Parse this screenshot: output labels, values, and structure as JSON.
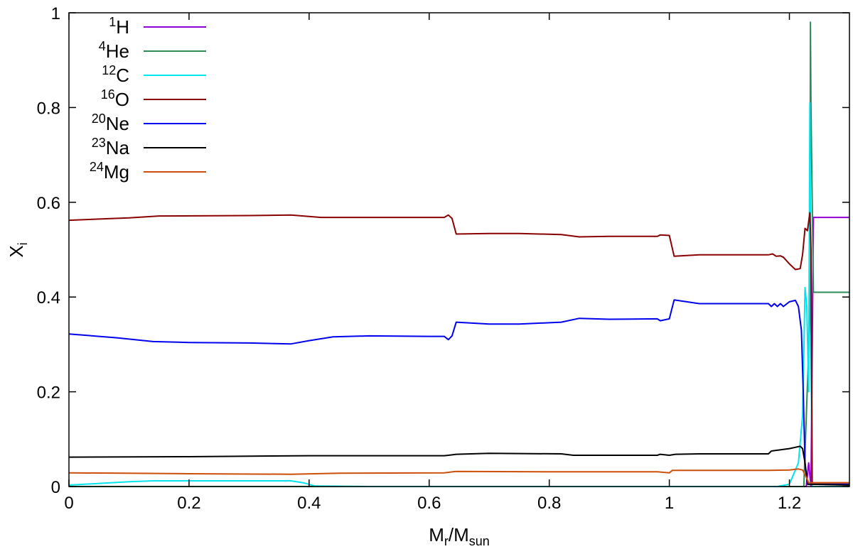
{
  "chart_data": {
    "type": "line",
    "title": "",
    "xlabel": {
      "main": "M",
      "sub1": "r",
      "mid": "/M",
      "sub2": "sun"
    },
    "ylabel": {
      "main": "X",
      "sub": "i"
    },
    "xlim": [
      0,
      1.3
    ],
    "ylim": [
      0,
      1
    ],
    "x_ticks": [
      0,
      0.2,
      0.4,
      0.6,
      0.8,
      1,
      1.2
    ],
    "x_tick_labels": [
      "0",
      "0.2",
      "0.4",
      "0.6",
      "0.8",
      "1",
      "1.2"
    ],
    "y_ticks": [
      0,
      0.2,
      0.4,
      0.6,
      0.8,
      1
    ],
    "y_tick_labels": [
      "0",
      "0.2",
      "0.4",
      "0.6",
      "0.8",
      "1"
    ],
    "grid": false,
    "legend_position": "top-left",
    "series": [
      {
        "name": "1H",
        "mass": "1",
        "symbol": "H",
        "color": "#9400d3",
        "points": [
          [
            0,
            0
          ],
          [
            1.228,
            0
          ],
          [
            1.232,
            0.05
          ],
          [
            1.236,
            0.0
          ],
          [
            1.24,
            0.568
          ],
          [
            1.3,
            0.568
          ]
        ]
      },
      {
        "name": "4He",
        "mass": "4",
        "symbol": "He",
        "color": "#2e8b57",
        "points": [
          [
            0,
            0
          ],
          [
            1.224,
            0
          ],
          [
            1.234,
            0.36
          ],
          [
            1.235,
            0.98
          ],
          [
            1.236,
            0.8
          ],
          [
            1.24,
            0.41
          ],
          [
            1.3,
            0.41
          ]
        ]
      },
      {
        "name": "12C",
        "mass": "12",
        "symbol": "C",
        "color": "#00e5ee",
        "points": [
          [
            0,
            0.003
          ],
          [
            0.1,
            0.01
          ],
          [
            0.14,
            0.012
          ],
          [
            0.3,
            0.012
          ],
          [
            0.37,
            0.012
          ],
          [
            0.39,
            0.008
          ],
          [
            0.41,
            0.001
          ],
          [
            0.5,
            0
          ],
          [
            1.18,
            0
          ],
          [
            1.2,
            0.005
          ],
          [
            1.215,
            0.05
          ],
          [
            1.222,
            0.15
          ],
          [
            1.226,
            0.42
          ],
          [
            1.229,
            0.38
          ],
          [
            1.232,
            0.2
          ],
          [
            1.234,
            0.81
          ],
          [
            1.236,
            0.3
          ],
          [
            1.238,
            0
          ],
          [
            1.3,
            0
          ]
        ]
      },
      {
        "name": "16O",
        "mass": "16",
        "symbol": "O",
        "color": "#8b0000",
        "points": [
          [
            0,
            0.562
          ],
          [
            0.1,
            0.567
          ],
          [
            0.15,
            0.571
          ],
          [
            0.3,
            0.572
          ],
          [
            0.37,
            0.573
          ],
          [
            0.42,
            0.568
          ],
          [
            0.5,
            0.568
          ],
          [
            0.6,
            0.568
          ],
          [
            0.625,
            0.568
          ],
          [
            0.632,
            0.573
          ],
          [
            0.638,
            0.566
          ],
          [
            0.645,
            0.533
          ],
          [
            0.7,
            0.534
          ],
          [
            0.75,
            0.534
          ],
          [
            0.82,
            0.532
          ],
          [
            0.85,
            0.527
          ],
          [
            0.9,
            0.528
          ],
          [
            0.98,
            0.528
          ],
          [
            0.985,
            0.531
          ],
          [
            1.0,
            0.53
          ],
          [
            1.008,
            0.486
          ],
          [
            1.05,
            0.489
          ],
          [
            1.1,
            0.489
          ],
          [
            1.165,
            0.489
          ],
          [
            1.172,
            0.491
          ],
          [
            1.178,
            0.486
          ],
          [
            1.185,
            0.487
          ],
          [
            1.19,
            0.484
          ],
          [
            1.2,
            0.47
          ],
          [
            1.21,
            0.458
          ],
          [
            1.218,
            0.46
          ],
          [
            1.222,
            0.49
          ],
          [
            1.226,
            0.545
          ],
          [
            1.23,
            0.54
          ],
          [
            1.234,
            0.578
          ],
          [
            1.236,
            0.5
          ],
          [
            1.238,
            0.008
          ],
          [
            1.3,
            0.008
          ]
        ]
      },
      {
        "name": "20Ne",
        "mass": "20",
        "symbol": "Ne",
        "color": "#0000ee",
        "points": [
          [
            0,
            0.322
          ],
          [
            0.08,
            0.314
          ],
          [
            0.14,
            0.306
          ],
          [
            0.2,
            0.304
          ],
          [
            0.3,
            0.303
          ],
          [
            0.37,
            0.301
          ],
          [
            0.4,
            0.308
          ],
          [
            0.44,
            0.316
          ],
          [
            0.5,
            0.318
          ],
          [
            0.6,
            0.317
          ],
          [
            0.625,
            0.317
          ],
          [
            0.632,
            0.31
          ],
          [
            0.638,
            0.318
          ],
          [
            0.645,
            0.347
          ],
          [
            0.7,
            0.343
          ],
          [
            0.75,
            0.343
          ],
          [
            0.82,
            0.347
          ],
          [
            0.85,
            0.355
          ],
          [
            0.9,
            0.353
          ],
          [
            0.98,
            0.354
          ],
          [
            0.985,
            0.35
          ],
          [
            1.0,
            0.354
          ],
          [
            1.008,
            0.394
          ],
          [
            1.05,
            0.386
          ],
          [
            1.1,
            0.386
          ],
          [
            1.165,
            0.386
          ],
          [
            1.17,
            0.38
          ],
          [
            1.175,
            0.386
          ],
          [
            1.18,
            0.38
          ],
          [
            1.185,
            0.386
          ],
          [
            1.19,
            0.38
          ],
          [
            1.2,
            0.39
          ],
          [
            1.21,
            0.393
          ],
          [
            1.215,
            0.38
          ],
          [
            1.22,
            0.33
          ],
          [
            1.223,
            0.2
          ],
          [
            1.226,
            0.05
          ],
          [
            1.23,
            0.005
          ],
          [
            1.3,
            0.005
          ]
        ]
      },
      {
        "name": "23Na",
        "mass": "23",
        "symbol": "Na",
        "color": "#000000",
        "points": [
          [
            0,
            0.062
          ],
          [
            0.2,
            0.063
          ],
          [
            0.4,
            0.065
          ],
          [
            0.625,
            0.065
          ],
          [
            0.632,
            0.066
          ],
          [
            0.645,
            0.068
          ],
          [
            0.7,
            0.07
          ],
          [
            0.82,
            0.069
          ],
          [
            0.84,
            0.066
          ],
          [
            0.9,
            0.066
          ],
          [
            0.98,
            0.066
          ],
          [
            0.985,
            0.068
          ],
          [
            1.0,
            0.066
          ],
          [
            1.01,
            0.068
          ],
          [
            1.05,
            0.069
          ],
          [
            1.165,
            0.069
          ],
          [
            1.17,
            0.075
          ],
          [
            1.2,
            0.08
          ],
          [
            1.218,
            0.085
          ],
          [
            1.222,
            0.08
          ],
          [
            1.226,
            0.05
          ],
          [
            1.23,
            0.005
          ],
          [
            1.3,
            0.003
          ]
        ]
      },
      {
        "name": "24Mg",
        "mass": "24",
        "symbol": "Mg",
        "color": "#cd4f0a",
        "points": [
          [
            0,
            0.029
          ],
          [
            0.2,
            0.027
          ],
          [
            0.37,
            0.026
          ],
          [
            0.45,
            0.028
          ],
          [
            0.625,
            0.029
          ],
          [
            0.645,
            0.032
          ],
          [
            0.8,
            0.031
          ],
          [
            0.98,
            0.031
          ],
          [
            1.0,
            0.029
          ],
          [
            1.005,
            0.034
          ],
          [
            1.1,
            0.034
          ],
          [
            1.165,
            0.034
          ],
          [
            1.2,
            0.035
          ],
          [
            1.215,
            0.037
          ],
          [
            1.222,
            0.035
          ],
          [
            1.228,
            0.02
          ],
          [
            1.232,
            0.008
          ],
          [
            1.3,
            0.008
          ]
        ]
      }
    ]
  }
}
